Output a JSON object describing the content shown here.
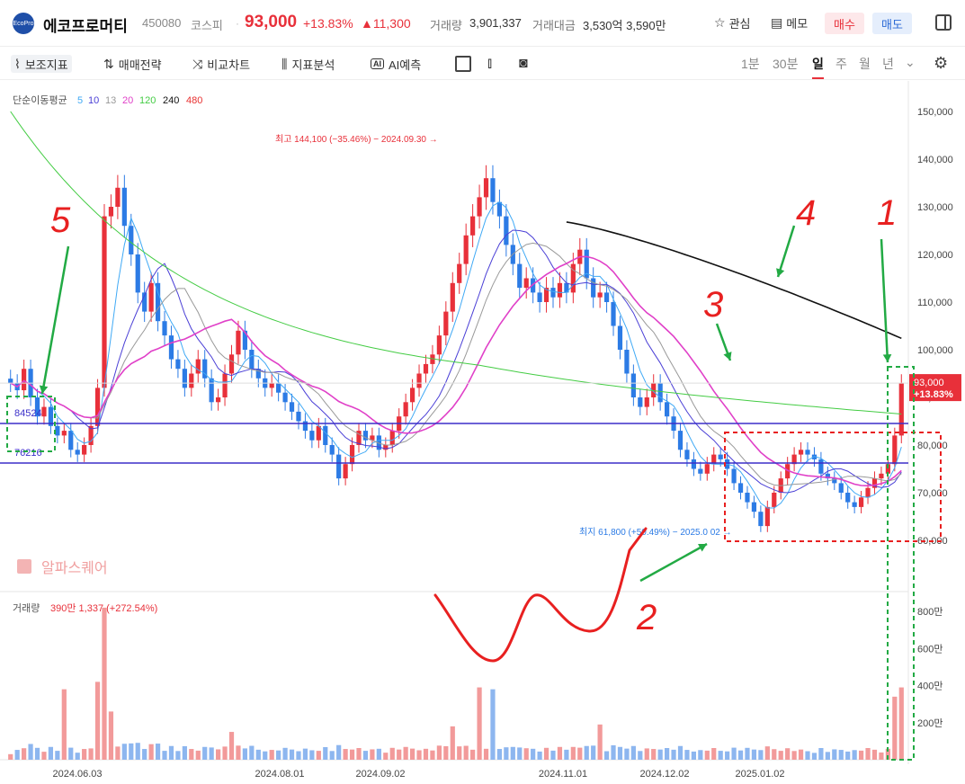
{
  "header": {
    "logo_text": "EcoPro",
    "name": "에코프로머티",
    "code": "450080",
    "market": "코스피",
    "price": "93,000",
    "change_pct": "+13.83%",
    "change_abs": "▲11,300",
    "volume_label": "거래량",
    "volume": "3,901,337",
    "amount_label": "거래대금",
    "amount": "3,530억 3,590만",
    "watch_label": "관심",
    "memo_label": "메모",
    "buy_label": "매수",
    "sell_label": "매도"
  },
  "toolbar": {
    "indicators": "보조지표",
    "strategy": "매매전략",
    "compare": "비교차트",
    "analysis": "지표분석",
    "ai_badge": "AI",
    "ai_predict": "AI예측",
    "timeframes": [
      "1분",
      "30분",
      "일",
      "주",
      "월",
      "년"
    ],
    "selected_timeframe": "일"
  },
  "chart_data": {
    "type": "candlestick",
    "ma_legend": {
      "label": "단순이동평균",
      "periods": [
        {
          "p": "5",
          "color": "#3fa9f5"
        },
        {
          "p": "10",
          "color": "#4a3fd6"
        },
        {
          "p": "13",
          "color": "#999999"
        },
        {
          "p": "20",
          "color": "#e040c8"
        },
        {
          "p": "120",
          "color": "#44cc44"
        },
        {
          "p": "240",
          "color": "#111111"
        },
        {
          "p": "480",
          "color": "#e83030"
        }
      ]
    },
    "ylim": [
      55000,
      155000
    ],
    "y_ticks": [
      "60,000",
      "70,000",
      "80,000",
      "90,000",
      "100,000",
      "110,000",
      "120,000",
      "130,000",
      "140,000",
      "150,000"
    ],
    "y_tick_values": [
      60000,
      70000,
      80000,
      90000,
      100000,
      110000,
      120000,
      130000,
      140000,
      150000
    ],
    "x_labels": [
      "2024.06.03",
      "2024.08.01",
      "2024.09.02",
      "2024.11.01",
      "2024.12.02",
      "2025.01.02"
    ],
    "current_price_label": "93,000",
    "current_change_label": "+13.83%",
    "high_annotation": "최고 144,100 (−35.46%) − 2024.09.30",
    "low_annotation": "최지 61,800 (+50.49%) − 2025.0  02",
    "hlines": [
      {
        "label": "84524",
        "value": 84524
      },
      {
        "label": "76216",
        "value": 76216
      }
    ],
    "close_series": [
      93000,
      91500,
      96000,
      90000,
      86000,
      88000,
      84000,
      82000,
      83000,
      79000,
      78000,
      80000,
      84000,
      92000,
      128000,
      130000,
      134000,
      126000,
      120000,
      112000,
      108000,
      114000,
      106000,
      103000,
      98000,
      96000,
      92000,
      95000,
      98000,
      94000,
      89000,
      90000,
      95000,
      99000,
      104000,
      100000,
      96000,
      94000,
      92000,
      93000,
      91000,
      89000,
      87000,
      85000,
      83000,
      81000,
      84000,
      80000,
      78000,
      73000,
      76000,
      80000,
      83000,
      81000,
      82000,
      79000,
      80000,
      83000,
      86000,
      89000,
      92000,
      95000,
      97000,
      99000,
      103000,
      108000,
      114000,
      118000,
      124000,
      128000,
      132000,
      136000,
      131000,
      128000,
      122000,
      118000,
      113000,
      115000,
      112000,
      110000,
      113000,
      111000,
      114000,
      112000,
      118000,
      121000,
      115000,
      111000,
      112000,
      110000,
      105000,
      100000,
      95000,
      90000,
      88000,
      90000,
      93000,
      89000,
      86000,
      83000,
      79000,
      77000,
      75000,
      74000,
      76000,
      78000,
      77000,
      75000,
      72000,
      70000,
      68000,
      66000,
      63000,
      67000,
      70000,
      73000,
      76000,
      78000,
      79000,
      78000,
      77000,
      74000,
      73000,
      72000,
      70000,
      68000,
      67000,
      69000,
      71000,
      73000,
      74000,
      76000,
      82000,
      93000
    ],
    "volume_label": "거래량",
    "volume_info": "390만 1,337 (+272.54%)",
    "volume_ticks": [
      "200만",
      "400만",
      "600만",
      "800만"
    ],
    "volume_tick_values": [
      200,
      400,
      600,
      800
    ],
    "volume_ylim": [
      0,
      1000
    ],
    "watermark": "알파스퀘어"
  },
  "annotations_hand": {
    "n1": "1",
    "n2": "2",
    "n3": "3",
    "n4": "4",
    "n5": "5"
  }
}
